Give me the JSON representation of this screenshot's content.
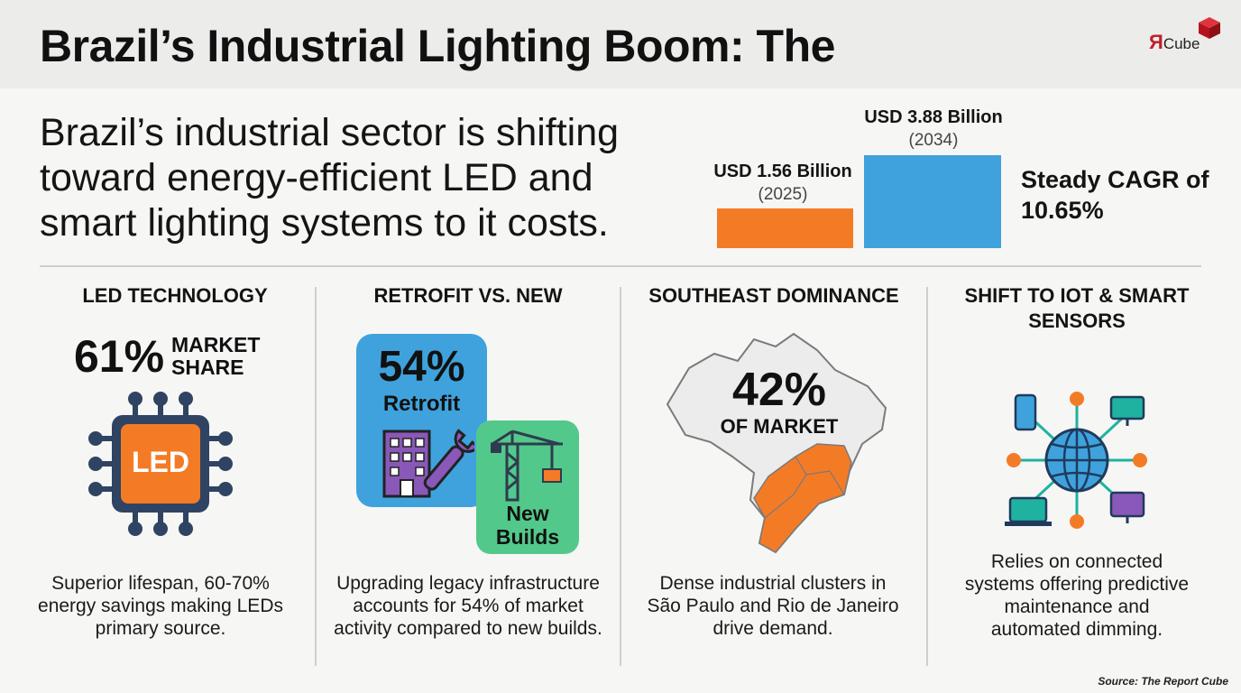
{
  "header": {
    "title": "Brazil’s Industrial Lighting Boom: The",
    "logo_text": "Cube",
    "logo_letter": "Я"
  },
  "intro": {
    "text": "Brazil’s industrial sector is  shifting\ntoward energy-efficient LED and\nsmart lighting systems to it costs."
  },
  "chart_data": {
    "type": "bar",
    "categories": [
      "2025",
      "2034"
    ],
    "values": [
      1.56,
      3.88
    ],
    "labels": [
      "USD 1.56 Billion",
      "USD 3.88 Billion"
    ],
    "year_labels": [
      "(2025)",
      "(2034)"
    ],
    "colors": [
      "#f47b26",
      "#3fa2dd"
    ],
    "annotation": "Steady CAGR of 10.65%"
  },
  "columns": [
    {
      "title": "LED TECHNOLOGY",
      "stat": "61%",
      "stat_label": "MARKET SHARE",
      "chip_label": "LED",
      "icon": "led-chip-icon",
      "text": "Superior lifespan, 60-70% energy savings making LEDs primary source."
    },
    {
      "title": "RETROFIT VS. NEW",
      "stat": "54%",
      "stat_label": "Retrofit",
      "secondary_label": "New Builds",
      "icon": "building-wrench-icon",
      "secondary_icon": "crane-icon",
      "text": "Upgrading legacy infrastructure accounts for 54% of market activity compared to new builds."
    },
    {
      "title": "SOUTHEAST DOMINANCE",
      "stat": "42%",
      "stat_label": "OF MARKET",
      "icon": "brazil-map-icon",
      "text": "Dense industrial clusters in São Paulo and Rio de Janeiro drive demand."
    },
    {
      "title": "SHIFT TO IOT & SMART SENSORS",
      "icon": "iot-network-icon",
      "text": "Relies on connected systems offering predictive maintenance and automated dimming."
    }
  ],
  "colors": {
    "orange": "#f47b26",
    "blue": "#3fa2dd",
    "green": "#52c98a",
    "purple": "#8a58b8",
    "teal": "#1fb2a0",
    "brand_red": "#c0202a"
  },
  "source": "Source: The Report Cube"
}
